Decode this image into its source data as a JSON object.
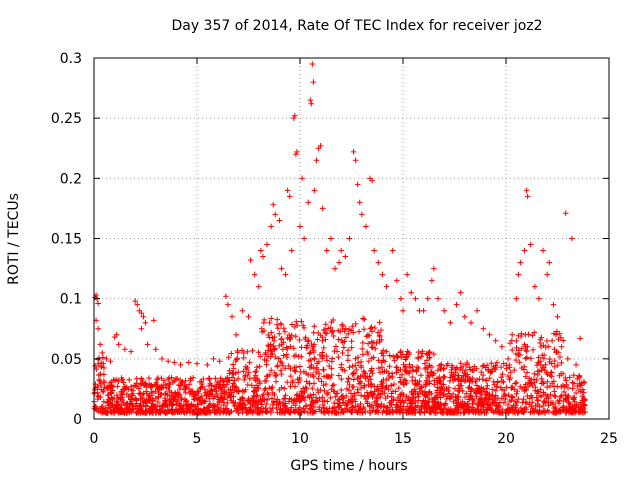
{
  "chart_data": {
    "type": "scatter",
    "title": "Day 357 of 2014, Rate Of TEC Index for receiver joz2",
    "xlabel": "GPS time / hours",
    "ylabel": "ROTI / TECUs",
    "xlim": [
      0,
      25
    ],
    "ylim": [
      0,
      0.3
    ],
    "xticks": [
      0,
      5,
      10,
      15,
      20,
      25
    ],
    "xtick_labels": [
      "0",
      "5",
      "10",
      "15",
      "20",
      "25"
    ],
    "yticks": [
      0,
      0.05,
      0.1,
      0.15,
      0.2,
      0.25,
      0.3
    ],
    "ytick_labels": [
      "0",
      "0.05",
      "0.1",
      "0.15",
      "0.2",
      "0.25",
      "0.3"
    ],
    "grid": true,
    "marker": "+",
    "marker_color": "#ff0000",
    "series": [
      {
        "name": "ROTI",
        "points": [
          [
            0.05,
            0.101
          ],
          [
            0.1,
            0.103
          ],
          [
            0.15,
            0.1
          ],
          [
            0.2,
            0.096
          ],
          [
            0.1,
            0.082
          ],
          [
            0.2,
            0.075
          ],
          [
            0.3,
            0.062
          ],
          [
            0.4,
            0.055
          ],
          [
            0.6,
            0.05
          ],
          [
            0.8,
            0.048
          ],
          [
            1.0,
            0.068
          ],
          [
            1.1,
            0.07
          ],
          [
            1.2,
            0.062
          ],
          [
            1.5,
            0.058
          ],
          [
            1.8,
            0.056
          ],
          [
            2.0,
            0.098
          ],
          [
            2.1,
            0.095
          ],
          [
            2.2,
            0.09
          ],
          [
            2.3,
            0.088
          ],
          [
            2.4,
            0.085
          ],
          [
            2.5,
            0.08
          ],
          [
            2.3,
            0.075
          ],
          [
            2.6,
            0.062
          ],
          [
            2.9,
            0.082
          ],
          [
            3.0,
            0.058
          ],
          [
            3.3,
            0.05
          ],
          [
            3.6,
            0.048
          ],
          [
            3.9,
            0.047
          ],
          [
            4.2,
            0.045
          ],
          [
            4.6,
            0.047
          ],
          [
            5.0,
            0.046
          ],
          [
            5.5,
            0.045
          ],
          [
            5.8,
            0.05
          ],
          [
            6.1,
            0.048
          ],
          [
            6.4,
            0.102
          ],
          [
            6.5,
            0.095
          ],
          [
            6.7,
            0.085
          ],
          [
            6.9,
            0.07
          ],
          [
            7.2,
            0.09
          ],
          [
            7.5,
            0.085
          ],
          [
            7.6,
            0.132
          ],
          [
            7.8,
            0.12
          ],
          [
            8.0,
            0.11
          ],
          [
            8.1,
            0.14
          ],
          [
            8.2,
            0.135
          ],
          [
            8.4,
            0.145
          ],
          [
            8.6,
            0.16
          ],
          [
            8.7,
            0.178
          ],
          [
            8.8,
            0.17
          ],
          [
            9.0,
            0.165
          ],
          [
            9.1,
            0.125
          ],
          [
            9.3,
            0.12
          ],
          [
            9.4,
            0.19
          ],
          [
            9.5,
            0.185
          ],
          [
            9.6,
            0.14
          ],
          [
            9.7,
            0.25
          ],
          [
            9.75,
            0.252
          ],
          [
            9.8,
            0.22
          ],
          [
            9.85,
            0.222
          ],
          [
            10.0,
            0.16
          ],
          [
            10.1,
            0.2
          ],
          [
            10.2,
            0.15
          ],
          [
            10.4,
            0.18
          ],
          [
            10.5,
            0.265
          ],
          [
            10.55,
            0.262
          ],
          [
            10.6,
            0.295
          ],
          [
            10.65,
            0.28
          ],
          [
            10.7,
            0.19
          ],
          [
            10.8,
            0.215
          ],
          [
            10.9,
            0.225
          ],
          [
            11.0,
            0.227
          ],
          [
            11.1,
            0.175
          ],
          [
            11.3,
            0.14
          ],
          [
            11.5,
            0.15
          ],
          [
            11.7,
            0.125
          ],
          [
            11.9,
            0.13
          ],
          [
            12.0,
            0.14
          ],
          [
            12.2,
            0.135
          ],
          [
            12.4,
            0.15
          ],
          [
            12.6,
            0.222
          ],
          [
            12.7,
            0.215
          ],
          [
            12.8,
            0.195
          ],
          [
            12.9,
            0.18
          ],
          [
            13.0,
            0.17
          ],
          [
            13.2,
            0.16
          ],
          [
            13.4,
            0.2
          ],
          [
            13.5,
            0.198
          ],
          [
            13.6,
            0.14
          ],
          [
            13.8,
            0.13
          ],
          [
            14.0,
            0.12
          ],
          [
            14.2,
            0.11
          ],
          [
            14.5,
            0.14
          ],
          [
            14.7,
            0.115
          ],
          [
            14.9,
            0.1
          ],
          [
            15.0,
            0.09
          ],
          [
            15.2,
            0.12
          ],
          [
            15.4,
            0.105
          ],
          [
            15.6,
            0.1
          ],
          [
            15.8,
            0.09
          ],
          [
            16.0,
            0.09
          ],
          [
            16.2,
            0.1
          ],
          [
            16.4,
            0.115
          ],
          [
            16.5,
            0.125
          ],
          [
            16.7,
            0.1
          ],
          [
            17.0,
            0.09
          ],
          [
            17.3,
            0.08
          ],
          [
            17.6,
            0.095
          ],
          [
            17.8,
            0.105
          ],
          [
            18.0,
            0.085
          ],
          [
            18.3,
            0.08
          ],
          [
            18.6,
            0.09
          ],
          [
            18.9,
            0.075
          ],
          [
            19.2,
            0.07
          ],
          [
            19.5,
            0.065
          ],
          [
            19.8,
            0.06
          ],
          [
            20.1,
            0.05
          ],
          [
            20.3,
            0.07
          ],
          [
            20.5,
            0.1
          ],
          [
            20.6,
            0.12
          ],
          [
            20.7,
            0.13
          ],
          [
            20.9,
            0.14
          ],
          [
            21.0,
            0.19
          ],
          [
            21.05,
            0.185
          ],
          [
            21.2,
            0.145
          ],
          [
            21.4,
            0.11
          ],
          [
            21.6,
            0.1
          ],
          [
            21.8,
            0.14
          ],
          [
            22.0,
            0.12
          ],
          [
            22.1,
            0.13
          ],
          [
            22.3,
            0.095
          ],
          [
            22.5,
            0.085
          ],
          [
            22.7,
            0.06
          ],
          [
            22.9,
            0.171
          ],
          [
            23.0,
            0.05
          ],
          [
            23.2,
            0.15
          ],
          [
            23.4,
            0.045
          ],
          [
            23.6,
            0.067
          ],
          [
            23.8,
            0.03
          ]
        ]
      }
    ]
  }
}
